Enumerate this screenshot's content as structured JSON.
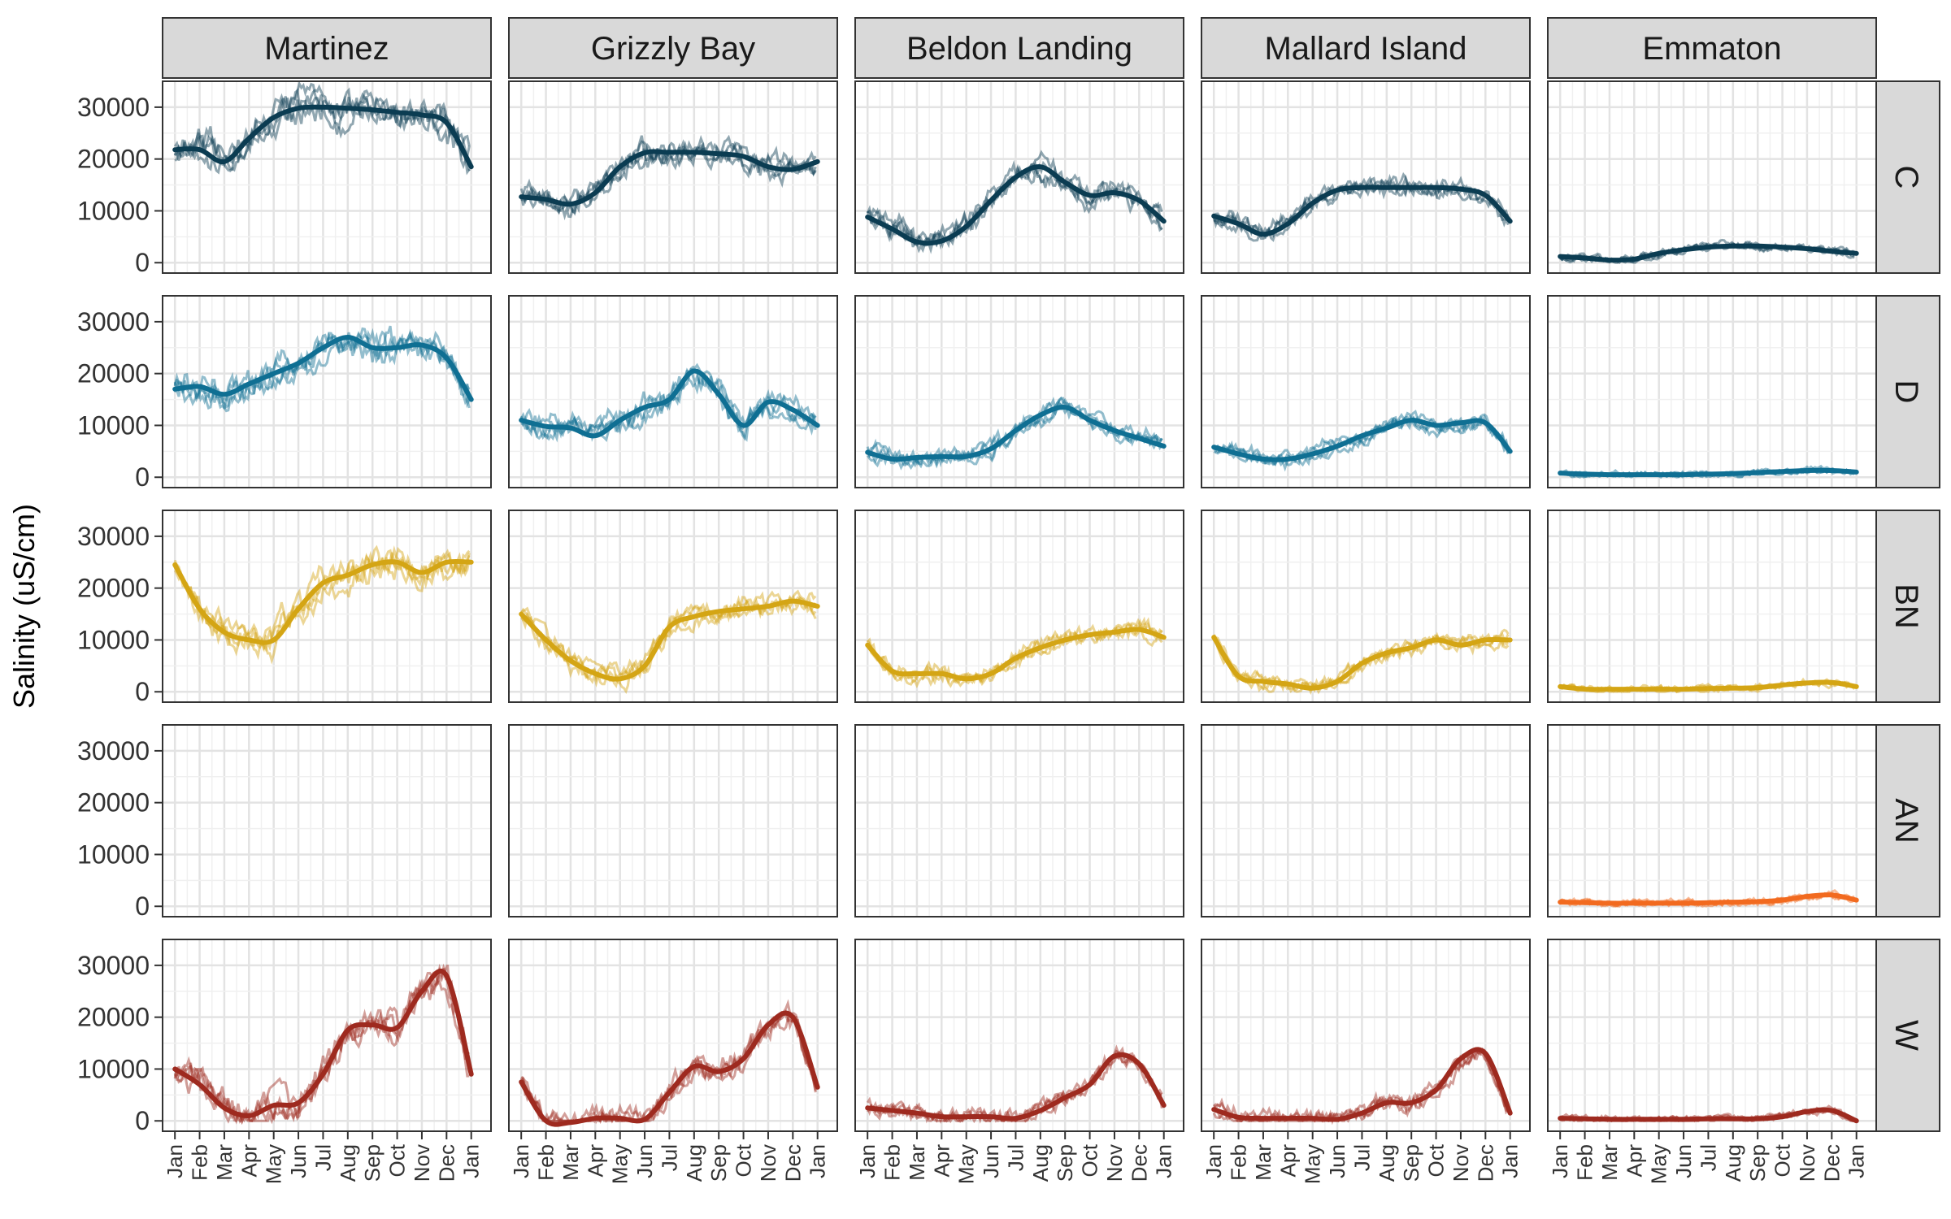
{
  "chart_data": {
    "type": "line",
    "ylabel": "Salinity (uS/cm)",
    "ylim": [
      -2000,
      35000
    ],
    "y_ticks": [
      0,
      10000,
      20000,
      30000
    ],
    "y_tick_labels": [
      "0",
      "10000",
      "20000",
      "30000"
    ],
    "x_tick_labels": [
      "Jan",
      "Feb",
      "Mar",
      "Apr",
      "May",
      "Jun",
      "Jul",
      "Aug",
      "Sep",
      "Oct",
      "Nov",
      "Dec",
      "Jan"
    ],
    "grid": true,
    "stations": [
      "Martinez",
      "Grizzly Bay",
      "Beldon Landing",
      "Mallard Island",
      "Emmaton"
    ],
    "year_types": [
      "C",
      "D",
      "BN",
      "AN",
      "W"
    ],
    "colors": {
      "C": "#0b3c52",
      "D": "#0f6f93",
      "BN": "#d4a514",
      "AN": "#f26a1f",
      "W": "#9e2a1f"
    },
    "series_note": "smoothed mean by month (0 = Jan ... 12 = next Jan)",
    "smooth": {
      "C": [
        [
          21800,
          21800,
          19500,
          24000,
          28000,
          29800,
          30000,
          29800,
          29500,
          29000,
          28500,
          27000,
          18500
        ],
        [
          12700,
          12200,
          11300,
          13500,
          18500,
          21200,
          21300,
          21300,
          21000,
          20500,
          18500,
          18000,
          19500
        ],
        [
          8800,
          6500,
          4000,
          4200,
          7000,
          12000,
          16500,
          18500,
          15500,
          13000,
          13500,
          12000,
          8000
        ],
        [
          9000,
          7500,
          5500,
          7500,
          11500,
          14000,
          14500,
          14500,
          14500,
          14500,
          14200,
          13000,
          8000
        ],
        [
          1200,
          900,
          500,
          700,
          1800,
          2500,
          3000,
          3200,
          3200,
          3000,
          2700,
          2200,
          1800
        ]
      ],
      "D": [
        [
          17000,
          17500,
          16000,
          18000,
          20000,
          22000,
          25000,
          27000,
          25000,
          25000,
          25500,
          23000,
          15000
        ],
        [
          11000,
          9800,
          9500,
          8000,
          11000,
          13500,
          15000,
          20500,
          16000,
          10000,
          14500,
          13000,
          10000
        ],
        [
          4800,
          3500,
          3800,
          4000,
          4000,
          5500,
          9000,
          12000,
          13500,
          11000,
          9000,
          7500,
          6000
        ],
        [
          5800,
          4500,
          3500,
          3500,
          4500,
          6000,
          8000,
          9500,
          11000,
          10000,
          10500,
          10500,
          5000
        ],
        [
          800,
          600,
          500,
          500,
          500,
          500,
          600,
          700,
          900,
          1100,
          1300,
          1300,
          1000
        ]
      ],
      "BN": [
        [
          24500,
          16000,
          11500,
          10000,
          10000,
          16000,
          21000,
          22500,
          24500,
          25000,
          23000,
          25000,
          25000
        ],
        [
          15000,
          10000,
          6000,
          3500,
          2500,
          5000,
          12500,
          14500,
          15500,
          16000,
          16500,
          17500,
          16500
        ],
        [
          9000,
          4000,
          3500,
          3500,
          2500,
          3500,
          6500,
          8500,
          10000,
          11000,
          11500,
          12000,
          10500
        ],
        [
          10500,
          3000,
          2000,
          1500,
          700,
          2000,
          5500,
          7500,
          8500,
          10000,
          9000,
          10000,
          10000
        ],
        [
          1000,
          500,
          500,
          500,
          500,
          500,
          600,
          700,
          800,
          1300,
          1700,
          1800,
          1000
        ]
      ],
      "AN": [
        [],
        [],
        [],
        [],
        [
          800,
          700,
          600,
          600,
          600,
          600,
          700,
          800,
          900,
          1200,
          1900,
          2200,
          1200
        ]
      ],
      "W": [
        [
          10000,
          7000,
          2500,
          1000,
          3000,
          3500,
          9000,
          17500,
          18500,
          18000,
          25000,
          28000,
          9000
        ],
        [
          7500,
          0,
          -300,
          500,
          500,
          300,
          5500,
          10500,
          9500,
          12000,
          18500,
          20000,
          6500
        ],
        [
          2500,
          2000,
          1500,
          800,
          800,
          800,
          500,
          2000,
          4500,
          7000,
          12500,
          11000,
          3000
        ],
        [
          2200,
          700,
          500,
          500,
          500,
          300,
          1500,
          3500,
          3500,
          6000,
          12000,
          13000,
          1500
        ],
        [
          500,
          400,
          300,
          300,
          300,
          300,
          400,
          400,
          400,
          800,
          1800,
          2000,
          0
        ]
      ]
    }
  }
}
